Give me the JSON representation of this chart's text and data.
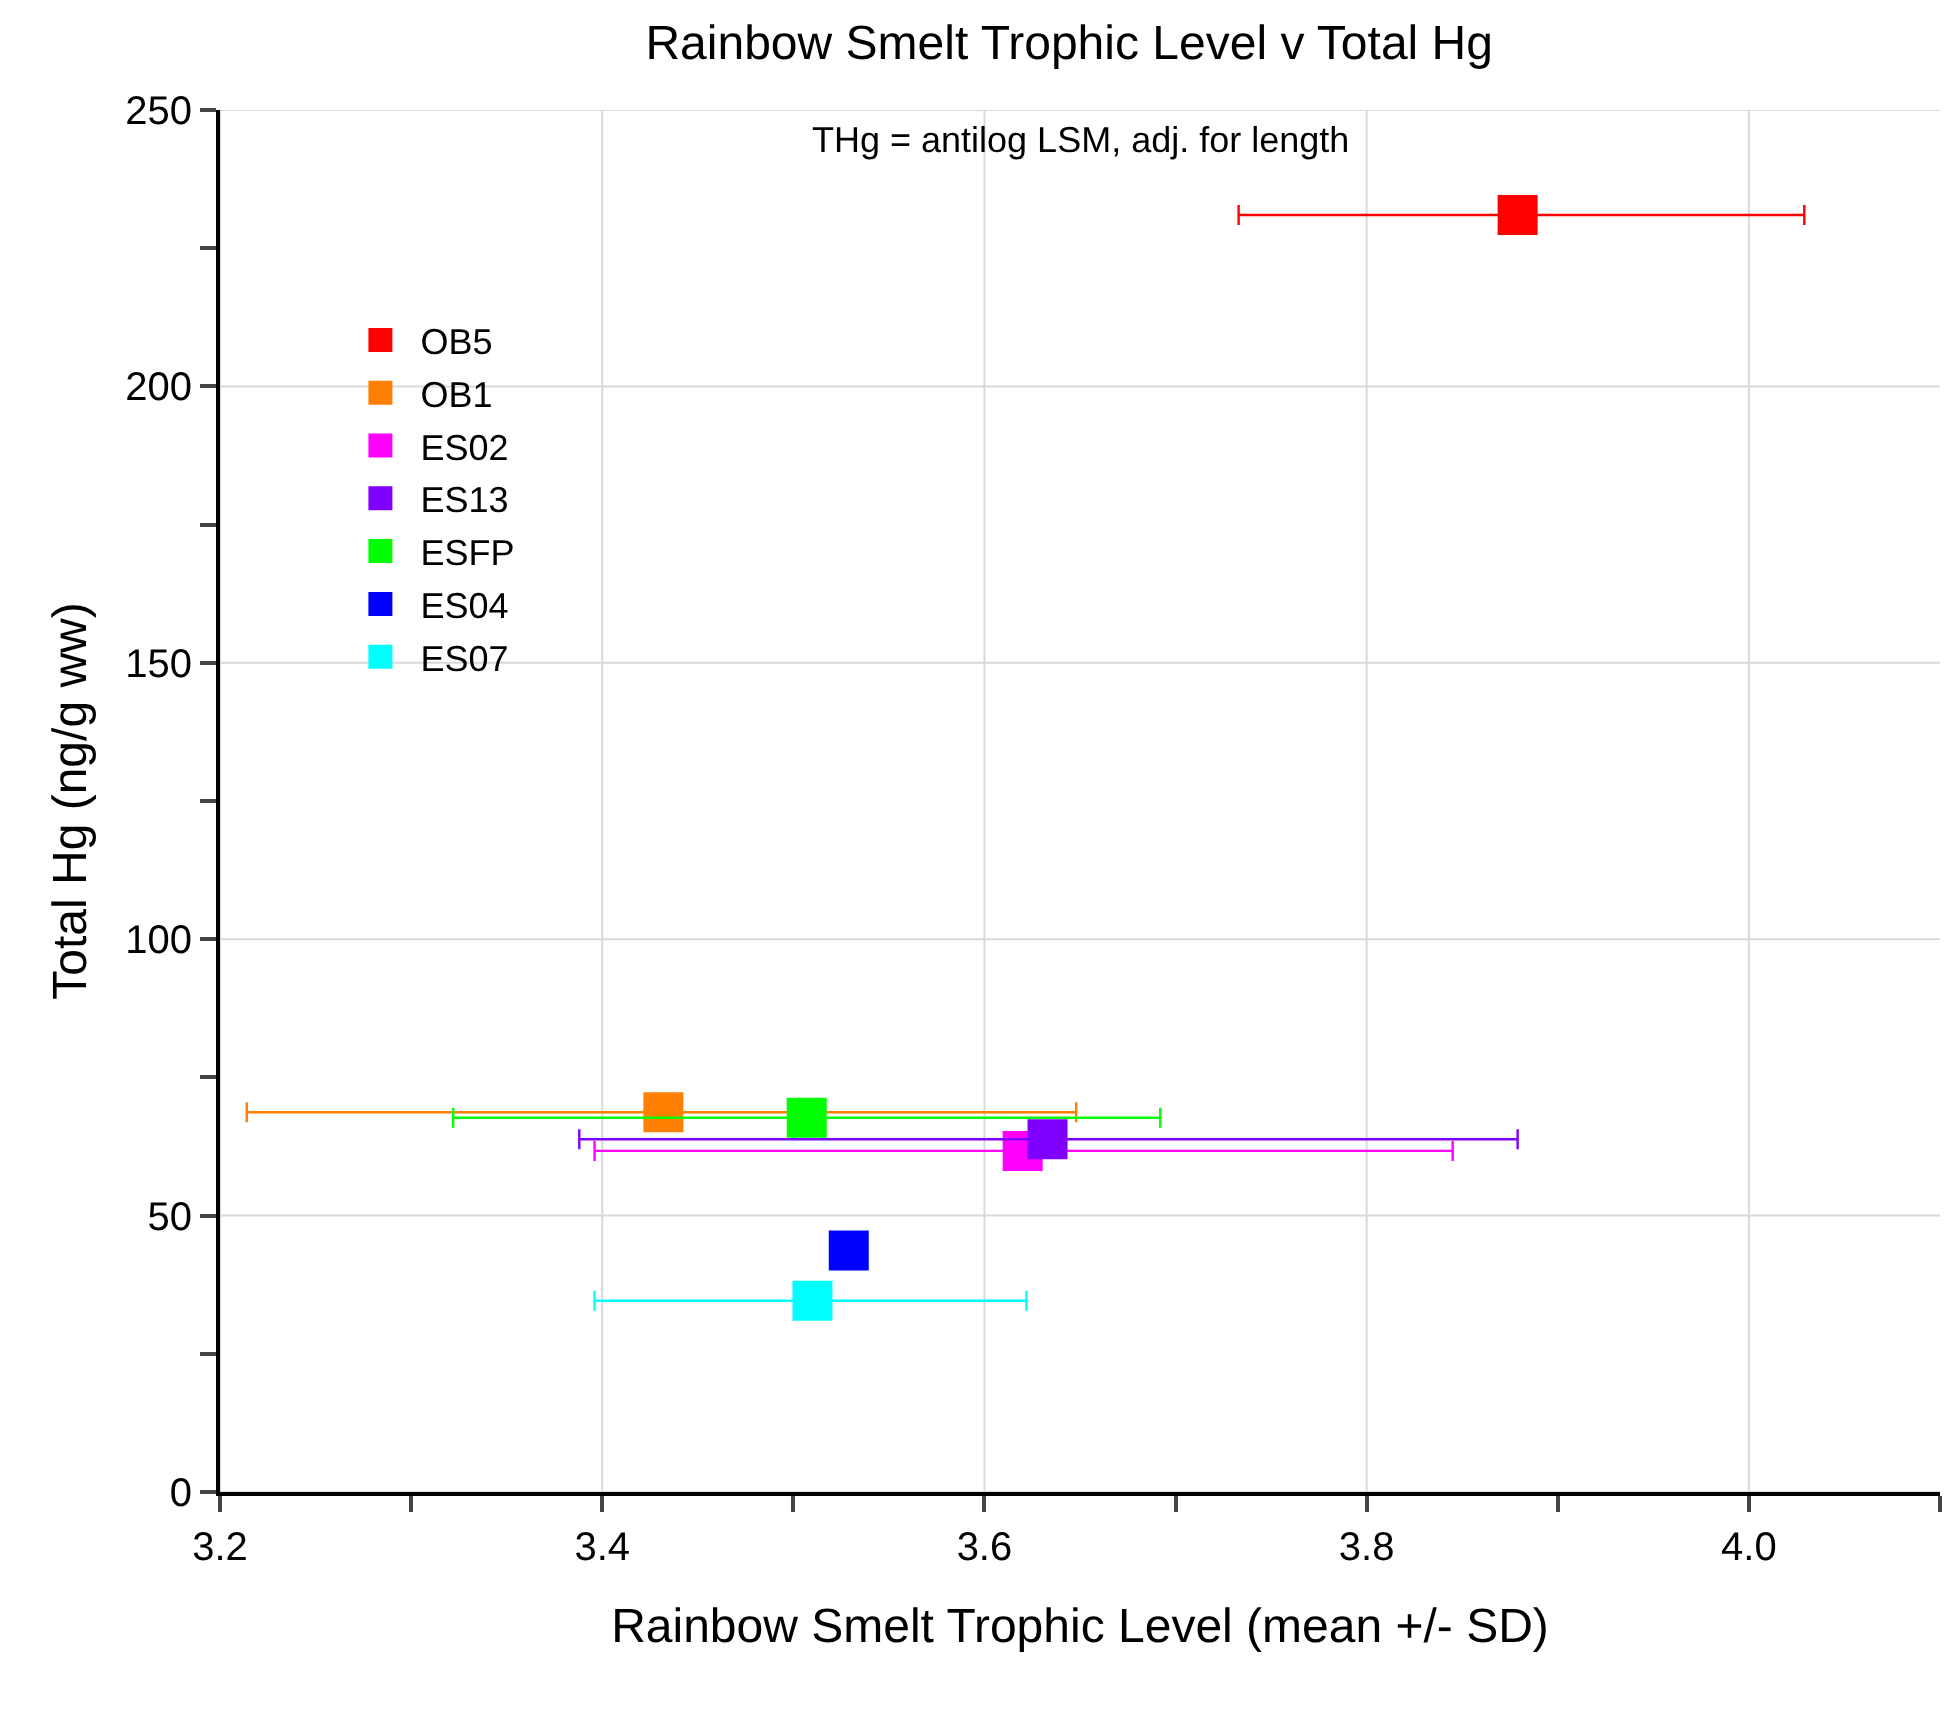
{
  "chart_data": {
    "type": "scatter",
    "title": "Rainbow Smelt Trophic Level v Total Hg",
    "subtitle": "THg = antilog LSM, adj. for length",
    "xlabel": "Rainbow Smelt Trophic Level (mean +/- SD)",
    "ylabel": "Total Hg (ng/g ww)",
    "series": [
      {
        "name": "OB5",
        "color": "#ff0000",
        "x": [
          3.879
        ],
        "values": [
          231
        ],
        "xerrors": [
          [
            3.733,
            4.029
          ]
        ]
      },
      {
        "name": "OB1",
        "color": "#ff8000",
        "x": [
          3.432
        ],
        "values": [
          68.7
        ],
        "xerrors": [
          [
            3.214,
            3.648
          ]
        ]
      },
      {
        "name": "ES02",
        "color": "#ff00ff",
        "x": [
          3.62
        ],
        "values": [
          61.7
        ],
        "xerrors": [
          [
            3.396,
            3.845
          ]
        ]
      },
      {
        "name": "ES13",
        "color": "#8000ff",
        "x": [
          3.633
        ],
        "values": [
          63.8
        ],
        "xerrors": [
          [
            3.388,
            3.879
          ]
        ]
      },
      {
        "name": "ESFP",
        "color": "#00ff00",
        "x": [
          3.507
        ],
        "values": [
          67.7
        ],
        "xerrors": [
          [
            3.322,
            3.692
          ]
        ]
      },
      {
        "name": "ES04",
        "color": "#0000ff",
        "x": [
          3.529
        ],
        "values": [
          43.7
        ]
      },
      {
        "name": "ES07",
        "color": "#00ffff",
        "x": [
          3.51
        ],
        "values": [
          34.6
        ],
        "xerrors": [
          [
            3.396,
            3.622
          ]
        ]
      }
    ],
    "xlim": [
      3.2,
      4.1
    ],
    "ylim": [
      0,
      250
    ],
    "xticks": [
      3.2,
      {
        "value": 3.3,
        "label": null
      },
      3.4,
      {
        "value": 3.5,
        "label": null
      },
      3.6,
      {
        "value": 3.7,
        "label": null
      },
      3.8,
      {
        "value": 3.9,
        "label": null
      },
      {
        "value": 4.0,
        "label": "4.0"
      },
      {
        "value": 4.1,
        "label": null
      }
    ],
    "yticks": [
      0,
      {
        "value": 25,
        "label": null
      },
      50,
      {
        "value": 75,
        "label": null
      },
      100,
      {
        "value": 125,
        "label": null
      },
      150,
      {
        "value": 175,
        "label": null
      },
      200,
      {
        "value": 225,
        "label": null
      },
      250
    ],
    "grid": true,
    "legend": "top left",
    "marker": "square"
  }
}
